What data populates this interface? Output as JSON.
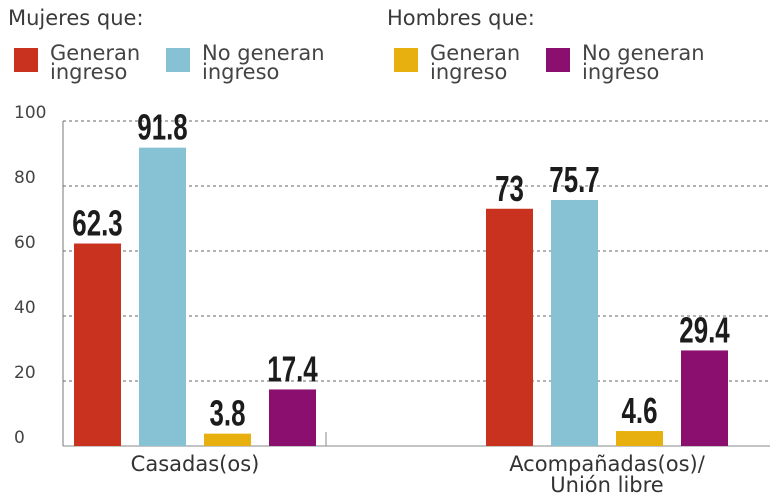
{
  "chart_data": {
    "type": "bar",
    "legend_groups": [
      "Mujeres que:",
      "Hombres que:"
    ],
    "categories": [
      "Casadas(os)",
      "Acompañadas(os)/ Unión libre"
    ],
    "series": [
      {
        "name": "Generan ingreso",
        "color": "#c8321e",
        "values": [
          62.3,
          73
        ]
      },
      {
        "name": "No generan ingreso",
        "color": "#86c2d3",
        "values": [
          91.8,
          75.7
        ]
      },
      {
        "name": "Generan ingreso",
        "color": "#e8b00f",
        "values": [
          3.8,
          4.6
        ]
      },
      {
        "name": "No generan ingreso",
        "color": "#8a0f6e",
        "values": [
          17.4,
          29.4
        ]
      }
    ],
    "ylim": [
      0,
      100
    ],
    "yticks": [
      0,
      20,
      40,
      60,
      80,
      100
    ],
    "grid": true
  }
}
